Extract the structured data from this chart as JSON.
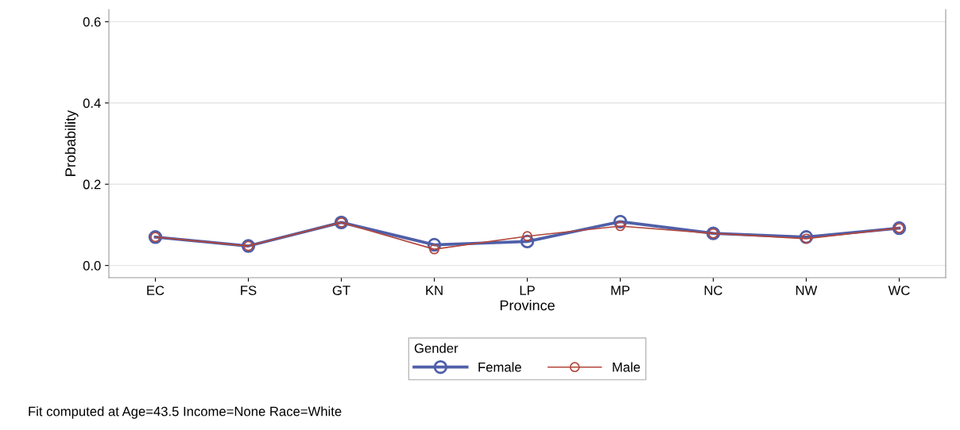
{
  "chart_data": {
    "type": "line",
    "xlabel": "Province",
    "ylabel": "Probability",
    "legend_title": "Gender",
    "categories": [
      "EC",
      "FS",
      "GT",
      "KN",
      "LP",
      "MP",
      "NC",
      "NW",
      "WC"
    ],
    "series": [
      {
        "name": "Female",
        "color": "#4f5fa8",
        "values": [
          0.07,
          0.048,
          0.106,
          0.051,
          0.059,
          0.108,
          0.079,
          0.07,
          0.092
        ]
      },
      {
        "name": "Male",
        "color": "#b2463c",
        "values": [
          0.07,
          0.048,
          0.106,
          0.04,
          0.072,
          0.097,
          0.079,
          0.066,
          0.092
        ]
      }
    ],
    "ylim": [
      -0.03,
      0.63
    ],
    "yticks": [
      {
        "value": 0,
        "label": "0.0"
      },
      0.2,
      0.4,
      0.6
    ],
    "grid": "y",
    "legend": "bottom",
    "marker": "circle",
    "line_style": "solid",
    "annotations": [
      "Fit computed at Age=43.5 Income=None Race=White"
    ]
  }
}
